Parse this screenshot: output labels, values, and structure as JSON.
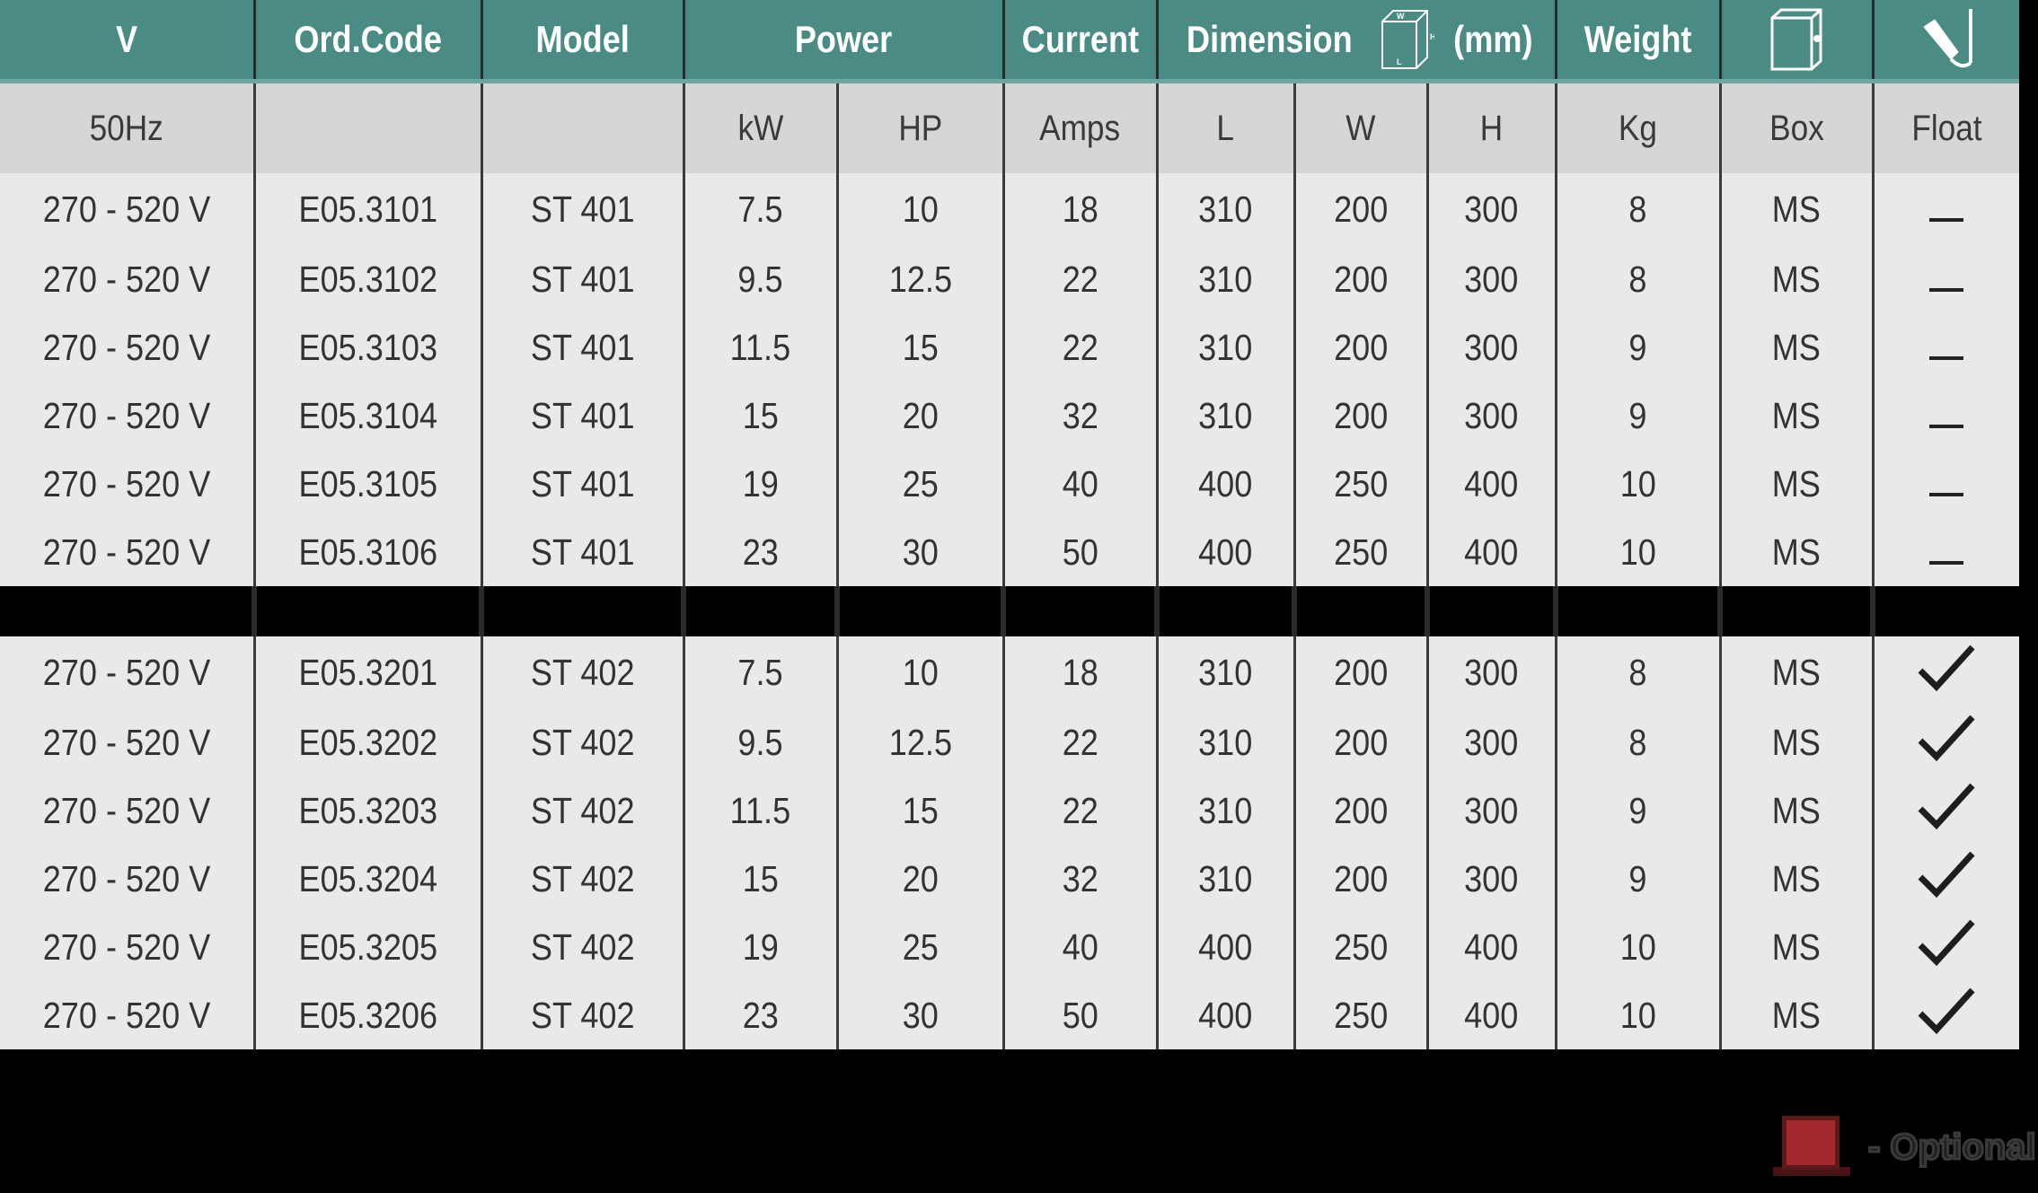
{
  "header": {
    "v": "V",
    "ord_code": "Ord.Code",
    "model": "Model",
    "power": "Power",
    "current": "Current",
    "dimension": "Dimension",
    "dimension_unit": "(mm)",
    "dimension_icon_labels": {
      "w": "W",
      "h": "H",
      "l": "L"
    },
    "weight": "Weight",
    "box_icon": "enclosure-box-icon",
    "float_icon": "float-switch-icon"
  },
  "subheader": {
    "v": "50Hz",
    "ord_code": "",
    "model": "",
    "kw": "kW",
    "hp": "HP",
    "amps": "Amps",
    "l": "L",
    "w": "W",
    "h": "H",
    "kg": "Kg",
    "box": "Box",
    "float": "Float"
  },
  "group1": [
    {
      "v": "270 - 520 V",
      "code": "E05.3101",
      "model": "ST 401",
      "kw": "7.5",
      "hp": "10",
      "amps": "18",
      "l": "310",
      "w": "200",
      "h": "300",
      "kg": "8",
      "box": "MS",
      "float": "none"
    },
    {
      "v": "270 - 520 V",
      "code": "E05.3102",
      "model": "ST 401",
      "kw": "9.5",
      "hp": "12.5",
      "amps": "22",
      "l": "310",
      "w": "200",
      "h": "300",
      "kg": "8",
      "box": "MS",
      "float": "none"
    },
    {
      "v": "270 - 520 V",
      "code": "E05.3103",
      "model": "ST 401",
      "kw": "11.5",
      "hp": "15",
      "amps": "22",
      "l": "310",
      "w": "200",
      "h": "300",
      "kg": "9",
      "box": "MS",
      "float": "none"
    },
    {
      "v": "270 - 520 V",
      "code": "E05.3104",
      "model": "ST 401",
      "kw": "15",
      "hp": "20",
      "amps": "32",
      "l": "310",
      "w": "200",
      "h": "300",
      "kg": "9",
      "box": "MS",
      "float": "none"
    },
    {
      "v": "270 - 520 V",
      "code": "E05.3105",
      "model": "ST 401",
      "kw": "19",
      "hp": "25",
      "amps": "40",
      "l": "400",
      "w": "250",
      "h": "400",
      "kg": "10",
      "box": "MS",
      "float": "none"
    },
    {
      "v": "270 - 520 V",
      "code": "E05.3106",
      "model": "ST 401",
      "kw": "23",
      "hp": "30",
      "amps": "50",
      "l": "400",
      "w": "250",
      "h": "400",
      "kg": "10",
      "box": "MS",
      "float": "none"
    }
  ],
  "group2": [
    {
      "v": "270 - 520 V",
      "code": "E05.3201",
      "model": "ST 402",
      "kw": "7.5",
      "hp": "10",
      "amps": "18",
      "l": "310",
      "w": "200",
      "h": "300",
      "kg": "8",
      "box": "MS",
      "float": "included"
    },
    {
      "v": "270 - 520 V",
      "code": "E05.3202",
      "model": "ST 402",
      "kw": "9.5",
      "hp": "12.5",
      "amps": "22",
      "l": "310",
      "w": "200",
      "h": "300",
      "kg": "8",
      "box": "MS",
      "float": "included"
    },
    {
      "v": "270 - 520 V",
      "code": "E05.3203",
      "model": "ST 402",
      "kw": "11.5",
      "hp": "15",
      "amps": "22",
      "l": "310",
      "w": "200",
      "h": "300",
      "kg": "9",
      "box": "MS",
      "float": "included"
    },
    {
      "v": "270 - 520 V",
      "code": "E05.3204",
      "model": "ST 402",
      "kw": "15",
      "hp": "20",
      "amps": "32",
      "l": "310",
      "w": "200",
      "h": "300",
      "kg": "9",
      "box": "MS",
      "float": "included"
    },
    {
      "v": "270 - 520 V",
      "code": "E05.3205",
      "model": "ST 402",
      "kw": "19",
      "hp": "25",
      "amps": "40",
      "l": "400",
      "w": "250",
      "h": "400",
      "kg": "10",
      "box": "MS",
      "float": "included"
    },
    {
      "v": "270 - 520 V",
      "code": "E05.3206",
      "model": "ST 402",
      "kw": "23",
      "hp": "30",
      "amps": "50",
      "l": "400",
      "w": "250",
      "h": "400",
      "kg": "10",
      "box": "MS",
      "float": "included"
    }
  ],
  "legend": {
    "label": "- Optional",
    "swatch_color": "#a1282c"
  },
  "colors": {
    "header_bg": "#4a8c84",
    "subheader_bg": "#d6d6d8",
    "row_bg": "#e9e9ea"
  }
}
